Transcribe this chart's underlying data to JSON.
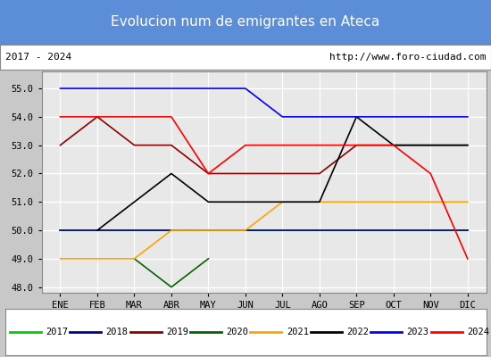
{
  "title": "Evolucion num de emigrantes en Ateca",
  "subtitle_left": "2017 - 2024",
  "subtitle_right": "http://www.foro-ciudad.com",
  "months": [
    "ENE",
    "FEB",
    "MAR",
    "ABR",
    "MAY",
    "JUN",
    "JUL",
    "AGO",
    "SEP",
    "OCT",
    "NOV",
    "DIC"
  ],
  "ylim": [
    47.8,
    55.6
  ],
  "yticks": [
    48.0,
    49.0,
    50.0,
    51.0,
    52.0,
    53.0,
    54.0,
    55.0
  ],
  "series": [
    {
      "year": "2017",
      "color": "#00cc00",
      "x": [
        0,
        1,
        2,
        3,
        4,
        5,
        6,
        7,
        8,
        9,
        10,
        11
      ],
      "y": [
        50,
        50,
        50,
        50,
        50,
        50,
        50,
        50,
        50,
        50,
        50,
        50
      ]
    },
    {
      "year": "2018",
      "color": "#00008b",
      "x": [
        0,
        1,
        2,
        3,
        4,
        5,
        6,
        7,
        8,
        9,
        10,
        11
      ],
      "y": [
        50,
        50,
        50,
        50,
        50,
        50,
        50,
        50,
        50,
        50,
        50,
        50
      ]
    },
    {
      "year": "2019",
      "color": "#8b0000",
      "x": [
        0,
        1,
        2,
        3,
        4,
        5,
        6,
        7,
        8,
        9,
        10,
        11
      ],
      "y": [
        53,
        54,
        53,
        53,
        52,
        52,
        52,
        52,
        53,
        53,
        53,
        53
      ]
    },
    {
      "year": "2020",
      "color": "#006400",
      "x": [
        2,
        3,
        4
      ],
      "y": [
        49,
        48,
        49
      ]
    },
    {
      "year": "2021",
      "color": "#ffa500",
      "x": [
        0,
        1,
        2,
        3,
        4,
        5,
        6,
        7,
        8,
        9,
        10,
        11
      ],
      "y": [
        49,
        49,
        49,
        50,
        50,
        50,
        51,
        51,
        51,
        51,
        51,
        51
      ]
    },
    {
      "year": "2022",
      "color": "#000000",
      "x": [
        1,
        2,
        3,
        4,
        6,
        7,
        8,
        9,
        10,
        11
      ],
      "y": [
        50,
        51,
        52,
        51,
        51,
        51,
        54,
        53,
        53,
        53
      ]
    },
    {
      "year": "2023",
      "color": "#0000ff",
      "x": [
        0,
        1,
        2,
        3,
        4,
        5,
        6,
        7,
        8,
        9,
        10,
        11
      ],
      "y": [
        55,
        55,
        55,
        55,
        55,
        55,
        54,
        54,
        54,
        54,
        54,
        54
      ]
    },
    {
      "year": "2024",
      "color": "#ff0000",
      "x": [
        0,
        1,
        2,
        3,
        4,
        5,
        6,
        7,
        8,
        9,
        10,
        11
      ],
      "y": [
        54,
        54,
        54,
        54,
        52,
        53,
        53,
        53,
        53,
        53,
        52,
        49
      ]
    }
  ],
  "title_bgcolor": "#5b8dd9",
  "title_color": "#ffffff",
  "plot_bgcolor": "#e8e8e8",
  "grid_color": "#ffffff",
  "outer_bgcolor": "#c8c8c8",
  "subtitle_bgcolor": "#ffffff",
  "legend_bgcolor": "#ffffff"
}
